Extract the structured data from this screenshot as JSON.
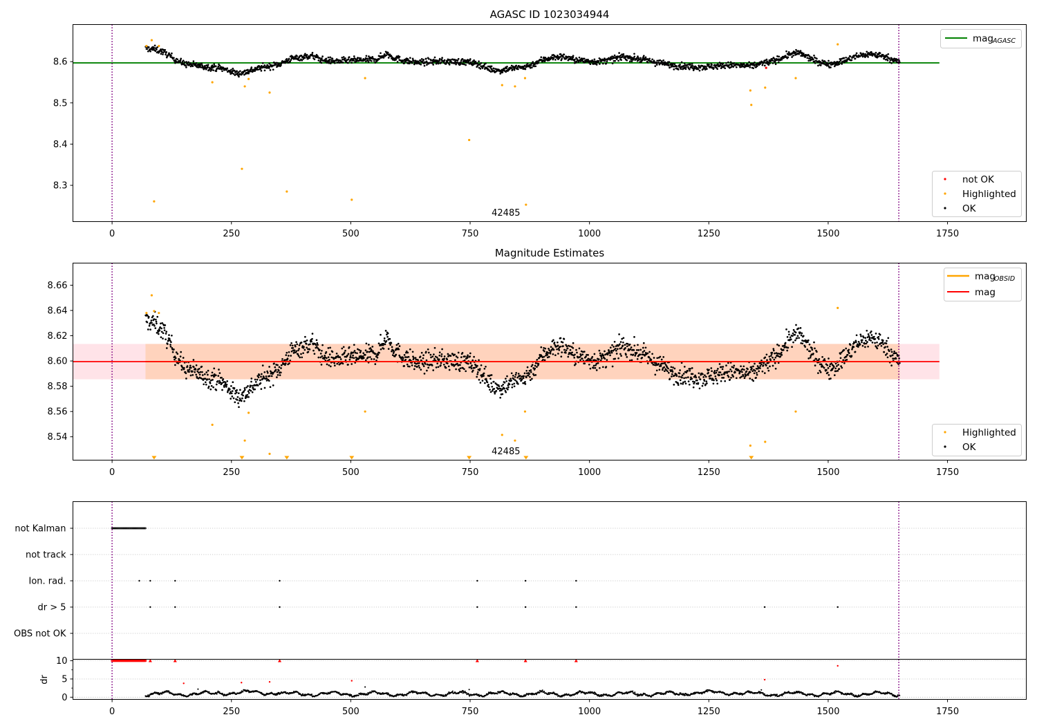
{
  "colors": {
    "ok": "#000000",
    "highlighted": "#ffa500",
    "not_ok": "#ff0000",
    "mag_agasc": "#008000",
    "mag_obsid": "#ffa500",
    "mag": "#ff0000",
    "band_pink": "#ffc0cb",
    "band_orange": "#ffc8a0",
    "boundary": "#800080"
  },
  "chart_data": [
    {
      "type": "scatter",
      "title": "AGASC ID 1023034944",
      "xlim": [
        -82,
        1915
      ],
      "ylim": [
        8.212,
        8.69
      ],
      "xticks": [
        0,
        250,
        500,
        750,
        1000,
        1250,
        1500,
        1750
      ],
      "yticks": [
        8.3,
        8.4,
        8.5,
        8.6
      ],
      "ytick_labels": [
        "8.3",
        "8.4",
        "8.5",
        "8.6"
      ],
      "hline": {
        "name_main": "mag",
        "name_sub": "AGASC",
        "y": 8.597,
        "xmin": -82,
        "xmax": 1733
      },
      "vlines": [
        0,
        1648
      ],
      "obsid_label": {
        "text": "42485",
        "x": 825
      },
      "legend_top": {
        "placement": "upper right",
        "entries": [
          {
            "main": "mag",
            "sub": "AGASC"
          }
        ]
      },
      "legend_bottom": {
        "placement": "lower right",
        "entries": [
          "not OK",
          "Highlighted",
          "OK"
        ]
      },
      "highlighted": [
        [
          72,
          8.638
        ],
        [
          83,
          8.652
        ],
        [
          88,
          8.261
        ],
        [
          98,
          8.638
        ],
        [
          210,
          8.55
        ],
        [
          272,
          8.34
        ],
        [
          278,
          8.54
        ],
        [
          286,
          8.558
        ],
        [
          330,
          8.525
        ],
        [
          366,
          8.285
        ],
        [
          502,
          8.265
        ],
        [
          530,
          8.56
        ],
        [
          748,
          8.41
        ],
        [
          817,
          8.543
        ],
        [
          844,
          8.54
        ],
        [
          865,
          8.56
        ],
        [
          867,
          8.253
        ],
        [
          1337,
          8.53
        ],
        [
          1339,
          8.495
        ],
        [
          1368,
          8.537
        ],
        [
          1432,
          8.56
        ],
        [
          1520,
          8.642
        ]
      ],
      "not_ok": [
        [
          1370,
          8.585
        ]
      ]
    },
    {
      "type": "scatter",
      "title": "Magnitude Estimates",
      "xlim": [
        -82,
        1915
      ],
      "ylim": [
        8.5215,
        8.6775
      ],
      "xticks": [
        0,
        250,
        500,
        750,
        1000,
        1250,
        1500,
        1750
      ],
      "yticks": [
        8.54,
        8.56,
        8.58,
        8.6,
        8.62,
        8.64,
        8.66
      ],
      "ytick_labels": [
        "8.54",
        "8.56",
        "8.58",
        "8.60",
        "8.62",
        "8.64",
        "8.66"
      ],
      "mag_line": {
        "name": "mag",
        "y": 8.5995,
        "xmin": -82,
        "xmax": 1733
      },
      "mag_obsid_line": {
        "name_main": "mag",
        "name_sub": "OBSID",
        "y": 8.5995
      },
      "band_pink": [
        8.5855,
        8.6135
      ],
      "band_orange": [
        8.5855,
        8.6135
      ],
      "vlines": [
        0,
        1648
      ],
      "obsid_label": {
        "text": "42485",
        "x": 825
      },
      "legend_top": {
        "placement": "upper right",
        "entries": [
          {
            "main": "mag",
            "sub": "OBSID"
          },
          {
            "main": "mag",
            "sub": ""
          }
        ]
      },
      "legend_bottom": {
        "placement": "lower right",
        "entries": [
          "Highlighted",
          "OK"
        ]
      },
      "highlighted": [
        [
          72,
          8.638
        ],
        [
          83,
          8.652
        ],
        [
          88,
          8.6395
        ],
        [
          98,
          8.638
        ],
        [
          210,
          8.5495
        ],
        [
          278,
          8.537
        ],
        [
          286,
          8.559
        ],
        [
          330,
          8.5265
        ],
        [
          530,
          8.56
        ],
        [
          817,
          8.5415
        ],
        [
          844,
          8.537
        ],
        [
          865,
          8.56
        ],
        [
          1337,
          8.533
        ],
        [
          1368,
          8.536
        ],
        [
          1432,
          8.56
        ],
        [
          1520,
          8.642
        ]
      ],
      "below_range_markers": [
        88,
        272,
        366,
        502,
        748,
        867,
        1339
      ]
    },
    {
      "type": "scatter",
      "title": "",
      "xlim": [
        -82,
        1915
      ],
      "categories": [
        "not Kalman",
        "not track",
        "Ion. rad.",
        "dr > 5",
        "OBS not OK"
      ],
      "flags": {
        "not Kalman": {
          "from": 0,
          "to": 70
        },
        "not track": [],
        "Ion. rad.": [
          57,
          80,
          132,
          351,
          765,
          866,
          972
        ],
        "dr > 5": [
          80,
          132,
          351,
          765,
          866,
          972,
          1367,
          1520
        ],
        "OBS not OK": []
      },
      "vlines": [
        0,
        1648
      ]
    },
    {
      "type": "scatter",
      "title": "",
      "xlim": [
        -82,
        1915
      ],
      "ylim": [
        -0.6,
        10.4
      ],
      "ylabel": "dr",
      "xticks": [
        0,
        250,
        500,
        750,
        1000,
        1250,
        1500,
        1750
      ],
      "yticks": [
        0,
        5,
        10
      ],
      "ytick_labels": [
        "0",
        "5",
        "10"
      ],
      "vlines": [
        0,
        1648
      ],
      "red_points": [
        [
          80,
          10
        ],
        [
          132,
          10
        ],
        [
          150,
          3.8
        ],
        [
          271,
          4
        ],
        [
          330,
          4.2
        ],
        [
          351,
          10
        ],
        [
          502,
          4.5
        ],
        [
          765,
          10
        ],
        [
          866,
          10
        ],
        [
          972,
          10
        ],
        [
          1367,
          4.8
        ],
        [
          1520,
          8.6
        ]
      ],
      "red_markers": [
        80,
        132,
        351,
        765,
        866,
        972
      ],
      "black_outliers": [
        [
          180,
          2.2
        ],
        [
          530,
          2.8
        ],
        [
          748,
          2.1
        ],
        [
          1360,
          2.0
        ]
      ]
    }
  ]
}
